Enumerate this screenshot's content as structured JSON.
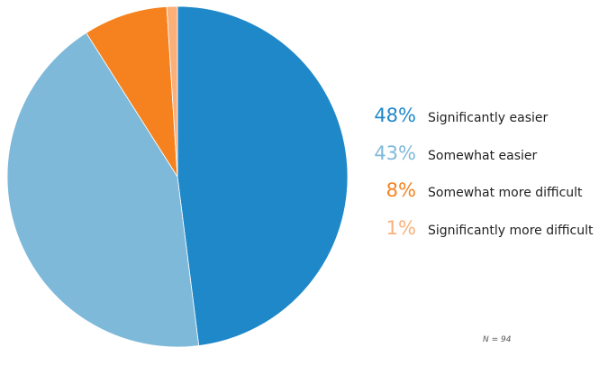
{
  "chart_data": {
    "type": "pie",
    "title": "",
    "slices": [
      {
        "label": "Significantly easier",
        "value": 48,
        "display": "48%",
        "color": "#1f88c9"
      },
      {
        "label": "Somewhat easier",
        "value": 43,
        "display": "43%",
        "color": "#7eb9da"
      },
      {
        "label": "Somewhat more difficult",
        "value": 8,
        "display": "8%",
        "color": "#f5821f"
      },
      {
        "label": "Significantly more difficult",
        "value": 1,
        "display": "1%",
        "color": "#fbb07a"
      }
    ],
    "note": "N = 94",
    "legend_position": "right"
  }
}
